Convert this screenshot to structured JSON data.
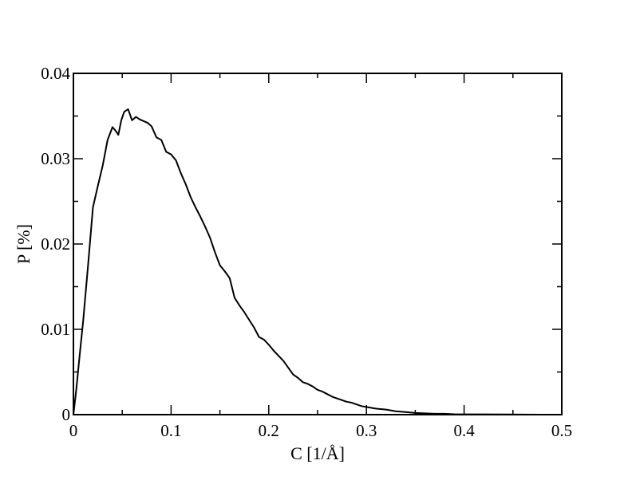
{
  "chart_data": {
    "type": "line",
    "title": "",
    "xlabel": "C [1/Å]",
    "ylabel": "P [%]",
    "xlim": [
      0,
      0.5
    ],
    "ylim": [
      0,
      0.04
    ],
    "x_ticks": [
      0,
      0.1,
      0.2,
      0.3,
      0.4,
      0.5
    ],
    "x_tick_labels": [
      "0",
      "0.1",
      "0.2",
      "0.3",
      "0.4",
      "0.5"
    ],
    "y_ticks": [
      0,
      0.01,
      0.02,
      0.03,
      0.04
    ],
    "y_tick_labels": [
      "0",
      "0.01",
      "0.02",
      "0.03",
      "0.04"
    ],
    "x_minor_step": 0.05,
    "y_minor_step": 0.005,
    "grid": false,
    "legend": "none",
    "line_color": "#000000",
    "series": [
      {
        "x": [
          0,
          0.003,
          0.006,
          0.01,
          0.015,
          0.02,
          0.025,
          0.03,
          0.035,
          0.04,
          0.043,
          0.046,
          0.049,
          0.052,
          0.056,
          0.06,
          0.064,
          0.068,
          0.072,
          0.076,
          0.08,
          0.085,
          0.09,
          0.095,
          0.1,
          0.105,
          0.11,
          0.115,
          0.12,
          0.125,
          0.13,
          0.135,
          0.14,
          0.145,
          0.15,
          0.155,
          0.16,
          0.165,
          0.17,
          0.175,
          0.18,
          0.185,
          0.19,
          0.195,
          0.2,
          0.205,
          0.21,
          0.215,
          0.22,
          0.225,
          0.23,
          0.235,
          0.24,
          0.245,
          0.25,
          0.255,
          0.26,
          0.265,
          0.27,
          0.275,
          0.28,
          0.285,
          0.29,
          0.295,
          0.3,
          0.31,
          0.32,
          0.33,
          0.34,
          0.35,
          0.36,
          0.37,
          0.38,
          0.39,
          0.4,
          0.42,
          0.44,
          0.46,
          0.48
        ],
        "values": [
          0,
          0.003,
          0.0065,
          0.011,
          0.0175,
          0.0243,
          0.0268,
          0.0292,
          0.0322,
          0.0337,
          0.0333,
          0.0328,
          0.0345,
          0.0355,
          0.0358,
          0.0345,
          0.0349,
          0.0346,
          0.0344,
          0.0342,
          0.0338,
          0.0325,
          0.0322,
          0.0308,
          0.0305,
          0.0298,
          0.0283,
          0.027,
          0.0255,
          0.0243,
          0.0232,
          0.022,
          0.0207,
          0.019,
          0.0175,
          0.0168,
          0.016,
          0.0137,
          0.0128,
          0.012,
          0.0111,
          0.0102,
          0.0091,
          0.0088,
          0.0082,
          0.0075,
          0.0069,
          0.0063,
          0.0055,
          0.0047,
          0.0043,
          0.0038,
          0.0036,
          0.0033,
          0.0029,
          0.0027,
          0.0024,
          0.0021,
          0.0019,
          0.0017,
          0.0015,
          0.0014,
          0.0012,
          0.001,
          0.0009,
          0.0007,
          0.0006,
          0.0004,
          0.0003,
          0.0002,
          0.00015,
          0.0001,
          0.0001,
          5e-05,
          4e-05,
          3e-05,
          2e-05,
          1e-05,
          0
        ]
      }
    ]
  }
}
